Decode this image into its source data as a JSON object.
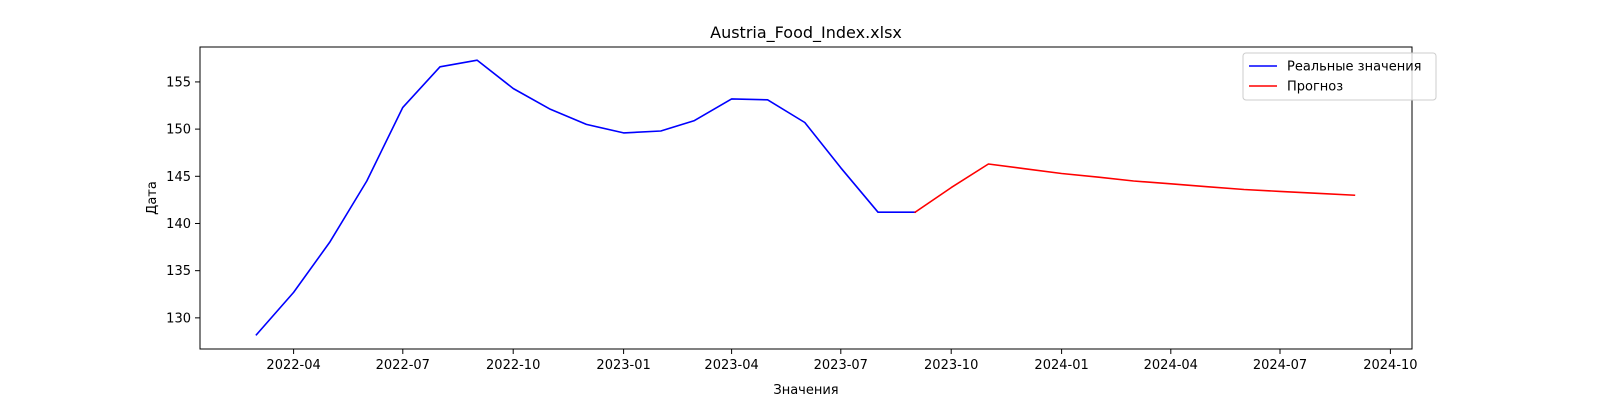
{
  "chart_data": {
    "type": "line",
    "title": "Austria_Food_Index.xlsx",
    "xlabel": "Значения",
    "ylabel": "Дата",
    "x_axis_type": "date",
    "xlim": [
      "2022-01-13",
      "2024-10-19"
    ],
    "ylim": [
      126.7,
      158.7
    ],
    "x_ticks": [
      "2022-04",
      "2022-07",
      "2022-10",
      "2023-01",
      "2023-04",
      "2023-07",
      "2023-10",
      "2024-01",
      "2024-04",
      "2024-07",
      "2024-10"
    ],
    "y_ticks": [
      130,
      135,
      140,
      145,
      150,
      155
    ],
    "grid": false,
    "legend_position": "top-right",
    "series": [
      {
        "name": "Реальные значения",
        "color": "#0000ff",
        "points": [
          {
            "x": "2022-03-01",
            "y": 128.2
          },
          {
            "x": "2022-04-01",
            "y": 132.7
          },
          {
            "x": "2022-05-01",
            "y": 138.0
          },
          {
            "x": "2022-06-01",
            "y": 144.5
          },
          {
            "x": "2022-07-01",
            "y": 152.3
          },
          {
            "x": "2022-08-01",
            "y": 156.6
          },
          {
            "x": "2022-09-01",
            "y": 157.3
          },
          {
            "x": "2022-10-01",
            "y": 154.3
          },
          {
            "x": "2022-11-01",
            "y": 152.1
          },
          {
            "x": "2022-12-01",
            "y": 150.5
          },
          {
            "x": "2023-01-01",
            "y": 149.6
          },
          {
            "x": "2023-02-01",
            "y": 149.8
          },
          {
            "x": "2023-03-01",
            "y": 150.9
          },
          {
            "x": "2023-04-01",
            "y": 153.2
          },
          {
            "x": "2023-05-01",
            "y": 153.1
          },
          {
            "x": "2023-06-01",
            "y": 150.7
          },
          {
            "x": "2023-07-01",
            "y": 145.9
          },
          {
            "x": "2023-08-01",
            "y": 141.2
          },
          {
            "x": "2023-09-01",
            "y": 141.2
          }
        ]
      },
      {
        "name": "Прогноз",
        "color": "#ff0000",
        "points": [
          {
            "x": "2023-09-01",
            "y": 141.2
          },
          {
            "x": "2023-10-01",
            "y": 143.8
          },
          {
            "x": "2023-11-01",
            "y": 146.3
          },
          {
            "x": "2023-12-01",
            "y": 145.8
          },
          {
            "x": "2024-01-01",
            "y": 145.3
          },
          {
            "x": "2024-02-01",
            "y": 144.9
          },
          {
            "x": "2024-03-01",
            "y": 144.5
          },
          {
            "x": "2024-04-01",
            "y": 144.2
          },
          {
            "x": "2024-05-01",
            "y": 143.9
          },
          {
            "x": "2024-06-01",
            "y": 143.6
          },
          {
            "x": "2024-07-01",
            "y": 143.4
          },
          {
            "x": "2024-08-01",
            "y": 143.2
          },
          {
            "x": "2024-09-01",
            "y": 143.0
          }
        ]
      }
    ]
  }
}
